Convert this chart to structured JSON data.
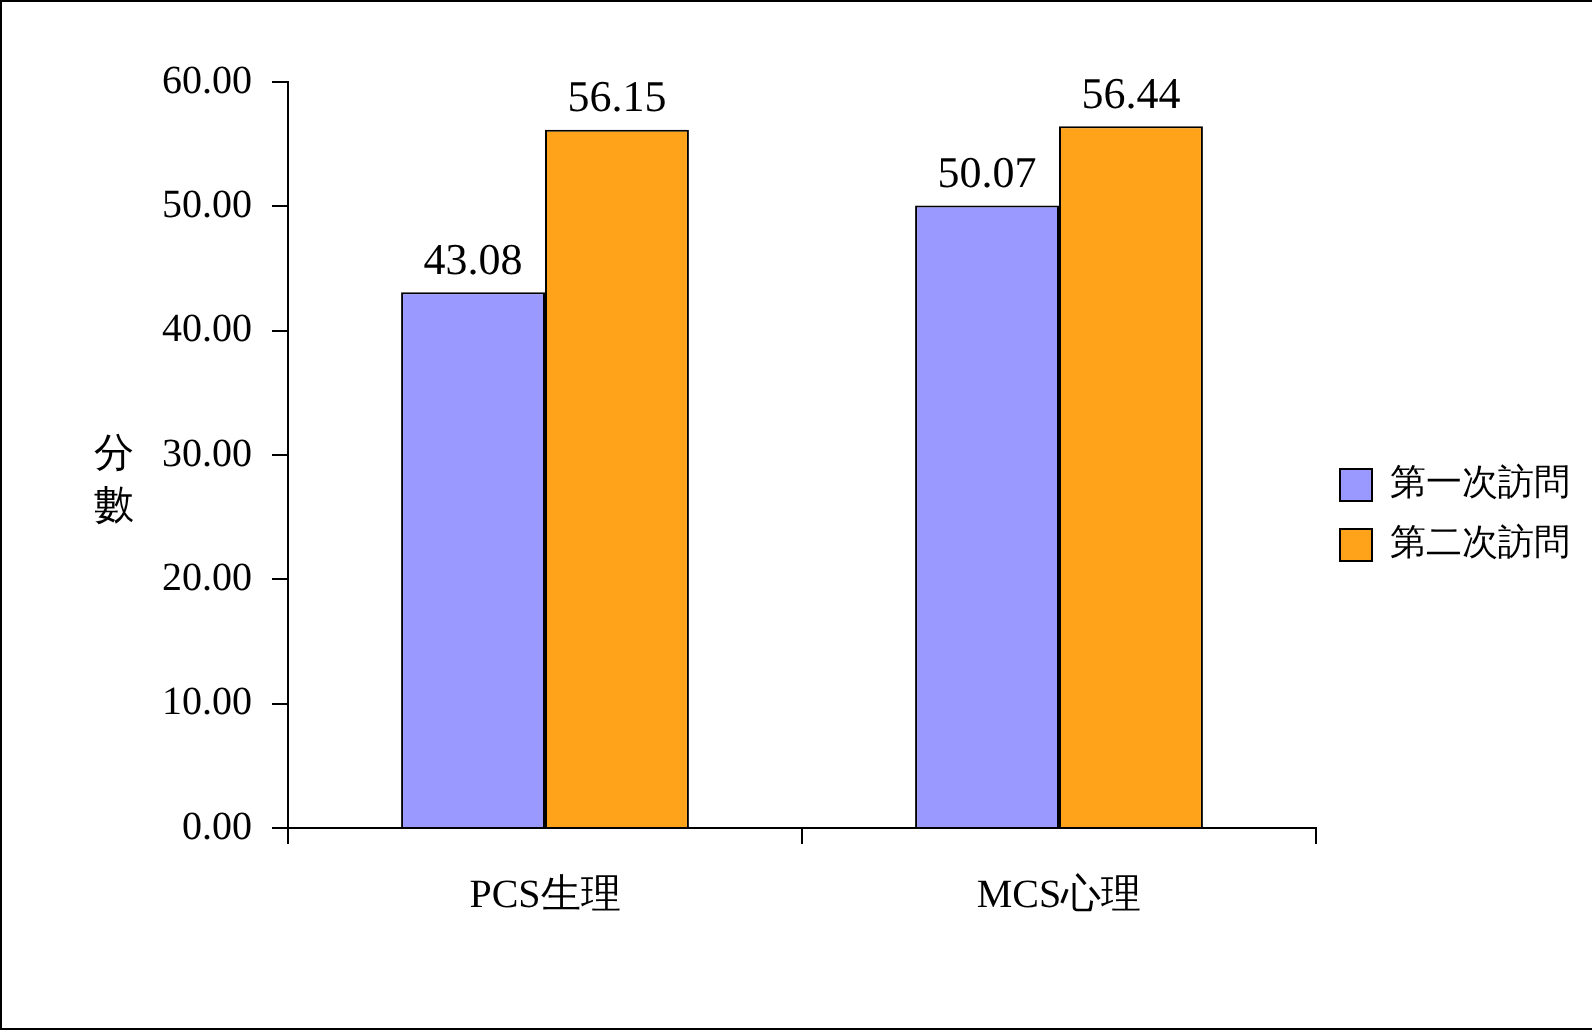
{
  "chart_data": {
    "type": "bar",
    "ylabel": "分數",
    "categories": [
      "PCS生理",
      "MCS心理"
    ],
    "series": [
      {
        "name": "第一次訪問",
        "color": "#9999ff",
        "values": [
          43.08,
          50.07
        ]
      },
      {
        "name": "第二次訪問",
        "color": "#ffa31a",
        "values": [
          56.15,
          56.44
        ]
      }
    ],
    "ylim": [
      0,
      60
    ],
    "yticks": [
      {
        "value": 0,
        "label": "0.00"
      },
      {
        "value": 10,
        "label": "10.00"
      },
      {
        "value": 20,
        "label": "20.00"
      },
      {
        "value": 30,
        "label": "30.00"
      },
      {
        "value": 40,
        "label": "40.00"
      },
      {
        "value": 50,
        "label": "50.00"
      },
      {
        "value": 60,
        "label": "60.00"
      }
    ],
    "data_labels": true,
    "legend": "right"
  }
}
